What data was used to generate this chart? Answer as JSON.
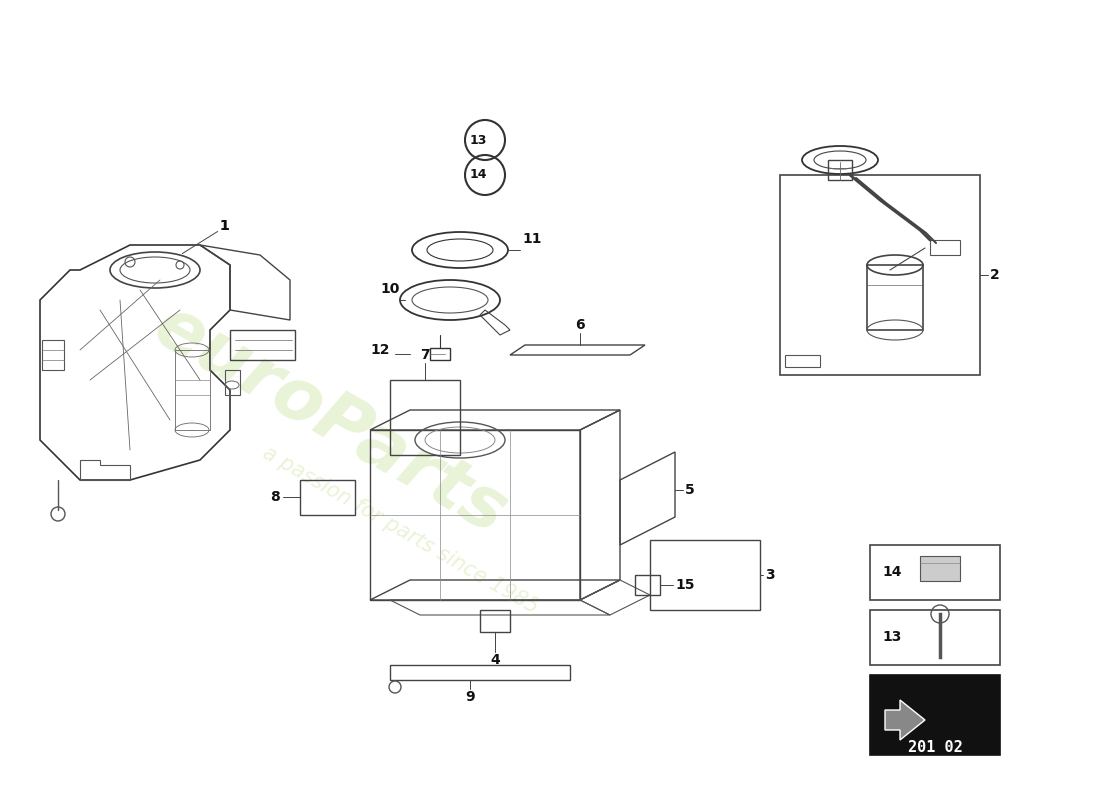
{
  "background_color": "#ffffff",
  "line_color": "#444444",
  "lw_main": 1.0,
  "lw_thin": 0.6,
  "watermark_color": "#d4e8b0",
  "watermark_alpha": 0.5,
  "diagram_code": "201 02"
}
